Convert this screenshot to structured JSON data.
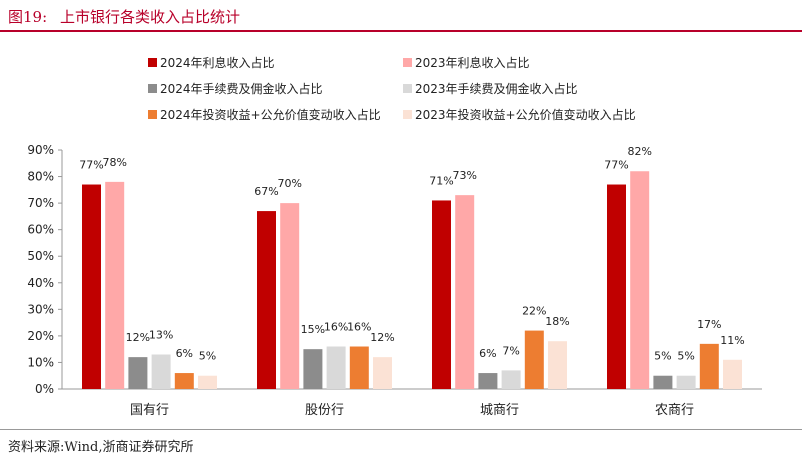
{
  "figure": {
    "label": "图19:",
    "title": "上市银行各类收入占比统计",
    "source": "资料来源:Wind,浙商证券研究所"
  },
  "chart_data": {
    "type": "bar",
    "categories": [
      "国有行",
      "股份行",
      "城商行",
      "农商行"
    ],
    "series": [
      {
        "name": "2024年利息收入占比",
        "color": "#c00000",
        "values": [
          77,
          67,
          71,
          77
        ]
      },
      {
        "name": "2023年利息收入占比",
        "color": "#ffa8a8",
        "values": [
          78,
          70,
          73,
          82
        ]
      },
      {
        "name": "2024年手续费及佣金收入占比",
        "color": "#8c8c8c",
        "values": [
          12,
          15,
          6,
          5
        ]
      },
      {
        "name": "2023年手续费及佣金收入占比",
        "color": "#d9d9d9",
        "values": [
          13,
          16,
          7,
          5
        ]
      },
      {
        "name": "2024年投资收益+公允价值变动收入占比",
        "color": "#ed7d31",
        "values": [
          6,
          16,
          22,
          17
        ]
      },
      {
        "name": "2023年投资收益+公允价值变动收入占比",
        "color": "#fbe2d5",
        "values": [
          5,
          12,
          18,
          11
        ]
      }
    ],
    "yticks": [
      "0%",
      "10%",
      "20%",
      "30%",
      "40%",
      "50%",
      "60%",
      "70%",
      "80%",
      "90%"
    ],
    "ylim": [
      0,
      90
    ],
    "value_format": "percent",
    "legend_position": "top",
    "grid": false
  }
}
